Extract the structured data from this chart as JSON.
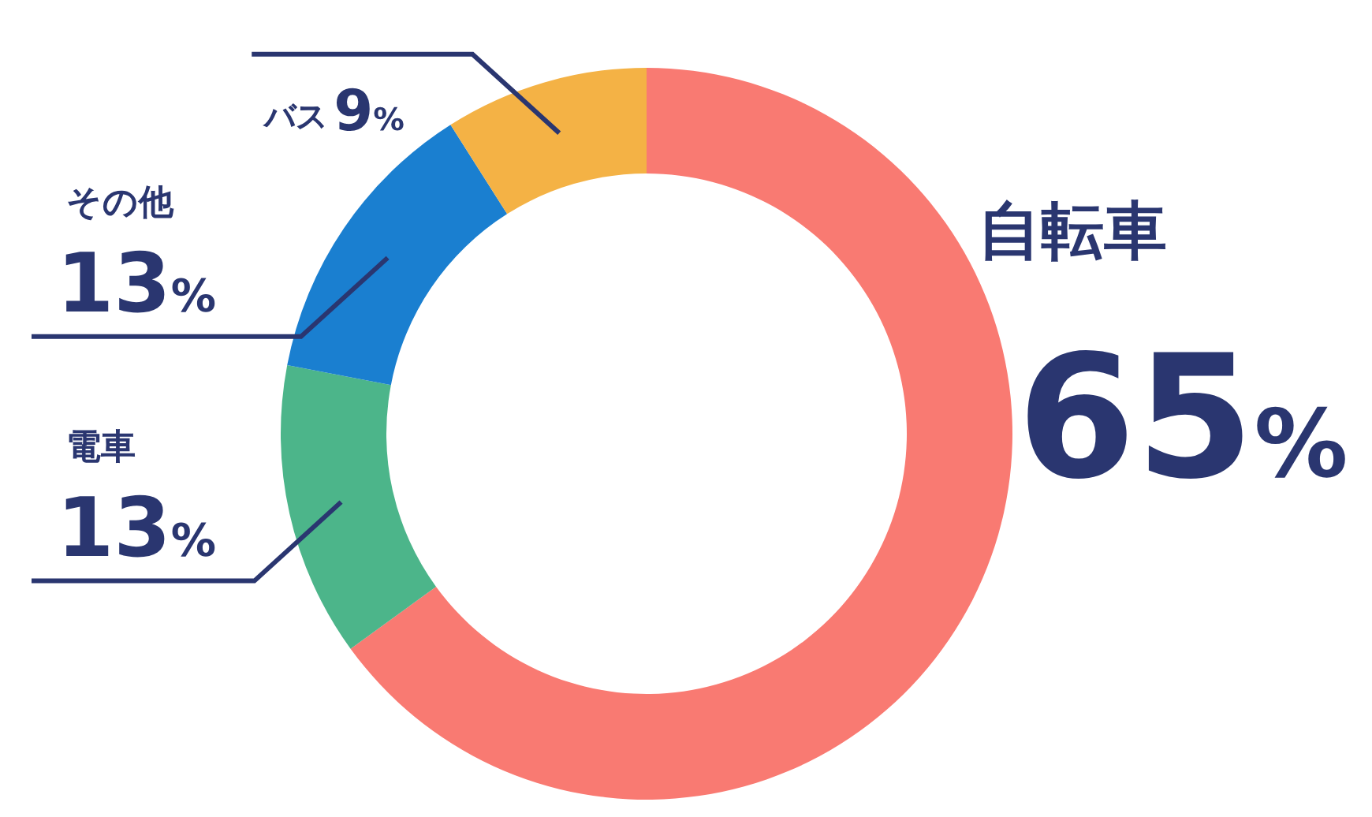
{
  "chart_data": {
    "type": "donut",
    "categories": [
      "自転車",
      "電車",
      "その他",
      "バス"
    ],
    "values": [
      65,
      13,
      13,
      9
    ],
    "value_labels": [
      "65%",
      "13%",
      "13%",
      "9%"
    ],
    "colors": [
      "#f97a72",
      "#4cb58a",
      "#1a7fd0",
      "#f4b245"
    ]
  }
}
